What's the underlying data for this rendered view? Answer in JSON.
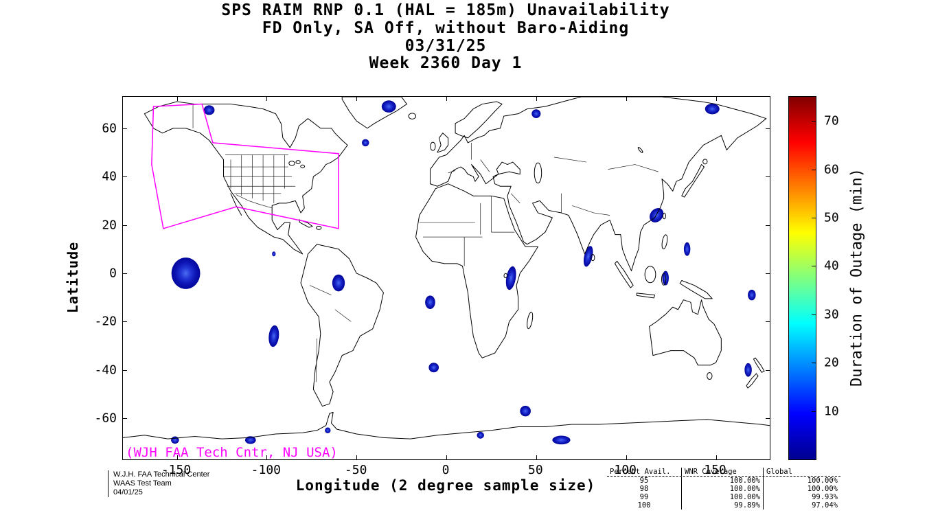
{
  "header": {
    "title_lines": [
      "SPS RAIM RNP 0.1 (HAL = 185m) Unavailability",
      "FD Only, SA Off, without Baro-Aiding",
      "03/31/25",
      "Week 2360 Day 1"
    ]
  },
  "axes": {
    "x": {
      "label": "Longitude (2 degree sample size)",
      "ticks": [
        -150,
        -100,
        -50,
        0,
        50,
        100,
        150
      ]
    },
    "y": {
      "label": "Latitude",
      "ticks": [
        60,
        40,
        20,
        0,
        -20,
        -40,
        -60
      ]
    }
  },
  "colorbar": {
    "label": "Duration of Outage (min)",
    "ticks": [
      10,
      20,
      30,
      40,
      50,
      60,
      70
    ],
    "min": 0,
    "max": 75,
    "colormap": "jet"
  },
  "annotations": {
    "map_credit": "(WJH FAA Tech Cntr, NJ USA)",
    "credit_color": "#ff00ff",
    "waas_boundary_color": "#ff00ff"
  },
  "footer": {
    "lines": [
      "W.J.H. FAA Technical Center",
      "WAAS Test Team",
      "04/01/25"
    ]
  },
  "stats_table": {
    "headers": [
      "Percent Avail.",
      "WNR Coverage",
      "Global"
    ],
    "rows": [
      [
        "95",
        "100.00%",
        "100.00%"
      ],
      [
        "98",
        "100.00%",
        "100.00%"
      ],
      [
        "99",
        "100.00%",
        "99.93%"
      ],
      [
        "100",
        "99.89%",
        "97.04%"
      ]
    ]
  },
  "chart_data": [
    {
      "type": "heatmap",
      "title": "SPS RAIM RNP 0.1 (HAL = 185m) Unavailability",
      "subtitle": "FD Only, SA Off, without Baro-Aiding, 03/31/25, Week 2360 Day 1",
      "xlabel": "Longitude (2 degree sample size)",
      "ylabel": "Latitude",
      "xlim": [
        -180,
        180
      ],
      "ylim": [
        -77,
        73
      ],
      "grid": false,
      "colorbar_label": "Duration of Outage (min)",
      "colorbar_range": [
        0,
        75
      ],
      "colorbar_ticks": [
        10,
        20,
        30,
        40,
        50,
        60,
        70
      ],
      "colormap": "jet",
      "waas_boundary_lonlat": [
        [
          -163,
          69
        ],
        [
          -136,
          70
        ],
        [
          -130,
          54
        ],
        [
          -60,
          49.5
        ],
        [
          -60,
          18.5
        ],
        [
          -117,
          27.5
        ],
        [
          -157.5,
          18.5
        ],
        [
          -164,
          45
        ]
      ],
      "outage_regions": [
        {
          "lon": -132,
          "lat": 67.5,
          "rx": 3,
          "ry": 2,
          "rot": 0,
          "duration_min": 8
        },
        {
          "lon": -32,
          "lat": 69,
          "rx": 4,
          "ry": 2.5,
          "rot": 0,
          "duration_min": 8
        },
        {
          "lon": -45,
          "lat": 54,
          "rx": 2,
          "ry": 1.5,
          "rot": 0,
          "duration_min": 5
        },
        {
          "lon": 50,
          "lat": 66,
          "rx": 2.5,
          "ry": 1.8,
          "rot": 0,
          "duration_min": 6
        },
        {
          "lon": 148,
          "lat": 68,
          "rx": 4,
          "ry": 2.2,
          "rot": 0,
          "duration_min": 8
        },
        {
          "lon": -145,
          "lat": 0,
          "rx": 8,
          "ry": 6.5,
          "rot": 0,
          "duration_min": 15
        },
        {
          "lon": -96,
          "lat": 8,
          "rx": 1,
          "ry": 1,
          "rot": 0,
          "duration_min": 5
        },
        {
          "lon": -60,
          "lat": -4,
          "rx": 3.5,
          "ry": 3.5,
          "rot": 0,
          "duration_min": 10
        },
        {
          "lon": -96,
          "lat": -26,
          "rx": 2.8,
          "ry": 4.5,
          "rot": 10,
          "duration_min": 12
        },
        {
          "lon": -9,
          "lat": -12,
          "rx": 2.8,
          "ry": 2.8,
          "rot": 0,
          "duration_min": 8
        },
        {
          "lon": -7,
          "lat": -39,
          "rx": 2.8,
          "ry": 2,
          "rot": 0,
          "duration_min": 6
        },
        {
          "lon": 36,
          "lat": -2,
          "rx": 2.6,
          "ry": 5,
          "rot": 15,
          "duration_min": 10
        },
        {
          "lon": 79,
          "lat": 7,
          "rx": 2.2,
          "ry": 4.5,
          "rot": 20,
          "duration_min": 10
        },
        {
          "lon": 117,
          "lat": 24,
          "rx": 4,
          "ry": 2.8,
          "rot": -20,
          "duration_min": 15
        },
        {
          "lon": 134,
          "lat": 10,
          "rx": 1.8,
          "ry": 2.8,
          "rot": 0,
          "duration_min": 6
        },
        {
          "lon": 122,
          "lat": -2,
          "rx": 1.8,
          "ry": 3,
          "rot": 0,
          "duration_min": 8
        },
        {
          "lon": 170,
          "lat": -9,
          "rx": 2.2,
          "ry": 2.2,
          "rot": 0,
          "duration_min": 6
        },
        {
          "lon": 168,
          "lat": -40,
          "rx": 2,
          "ry": 2.8,
          "rot": 0,
          "duration_min": 8
        },
        {
          "lon": 44,
          "lat": -57,
          "rx": 3,
          "ry": 2.2,
          "rot": 0,
          "duration_min": 8
        },
        {
          "lon": 19,
          "lat": -67,
          "rx": 2,
          "ry": 1.4,
          "rot": 0,
          "duration_min": 5
        },
        {
          "lon": 64,
          "lat": -69,
          "rx": 5,
          "ry": 1.8,
          "rot": 0,
          "duration_min": 8
        },
        {
          "lon": -109,
          "lat": -69,
          "rx": 3,
          "ry": 1.6,
          "rot": 0,
          "duration_min": 6
        },
        {
          "lon": -151,
          "lat": -69,
          "rx": 2.2,
          "ry": 1.5,
          "rot": 0,
          "duration_min": 6
        },
        {
          "lon": -66,
          "lat": -65,
          "rx": 1.6,
          "ry": 1.2,
          "rot": 0,
          "duration_min": 5
        }
      ]
    },
    {
      "type": "table",
      "columns": [
        "Percent Avail.",
        "WNR Coverage",
        "Global"
      ],
      "rows": [
        [
          95,
          "100.00%",
          "100.00%"
        ],
        [
          98,
          "100.00%",
          "100.00%"
        ],
        [
          99,
          "100.00%",
          "99.93%"
        ],
        [
          100,
          "99.89%",
          "97.04%"
        ]
      ]
    }
  ]
}
